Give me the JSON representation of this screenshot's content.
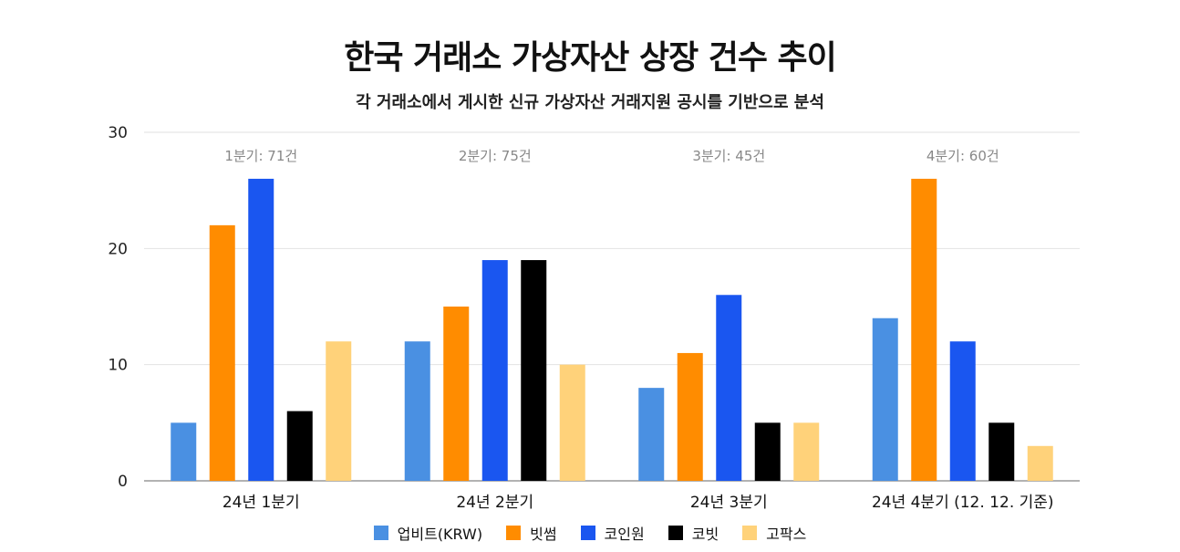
{
  "chart_data": {
    "type": "bar",
    "title": "한국 거래소 가상자산 상장 건수 추이",
    "subtitle": "각 거래소에서 게시한 신규 가상자산 거래지원 공시를 기반으로 분석",
    "categories": [
      "24년 1분기",
      "24년 2분기",
      "24년 3분기",
      "24년 4분기 (12. 12. 기준)"
    ],
    "annotations": [
      "1분기: 71건",
      "2분기: 75건",
      "3분기: 45건",
      "4분기: 60건"
    ],
    "series": [
      {
        "name": "업비트(KRW)",
        "color": "#4A90E2",
        "values": [
          5,
          12,
          8,
          14
        ]
      },
      {
        "name": "빗썸",
        "color": "#FF8C00",
        "values": [
          22,
          15,
          11,
          26
        ]
      },
      {
        "name": "코인원",
        "color": "#1A56F0",
        "values": [
          26,
          19,
          16,
          12
        ]
      },
      {
        "name": "코빗",
        "color": "#000000",
        "values": [
          6,
          19,
          5,
          5
        ]
      },
      {
        "name": "고팍스",
        "color": "#FFD27A",
        "values": [
          12,
          10,
          5,
          3
        ]
      }
    ],
    "yticks": [
      "0",
      "10",
      "20",
      "30"
    ],
    "ylim": [
      0,
      30
    ],
    "grid": true,
    "legend": "bottom"
  }
}
